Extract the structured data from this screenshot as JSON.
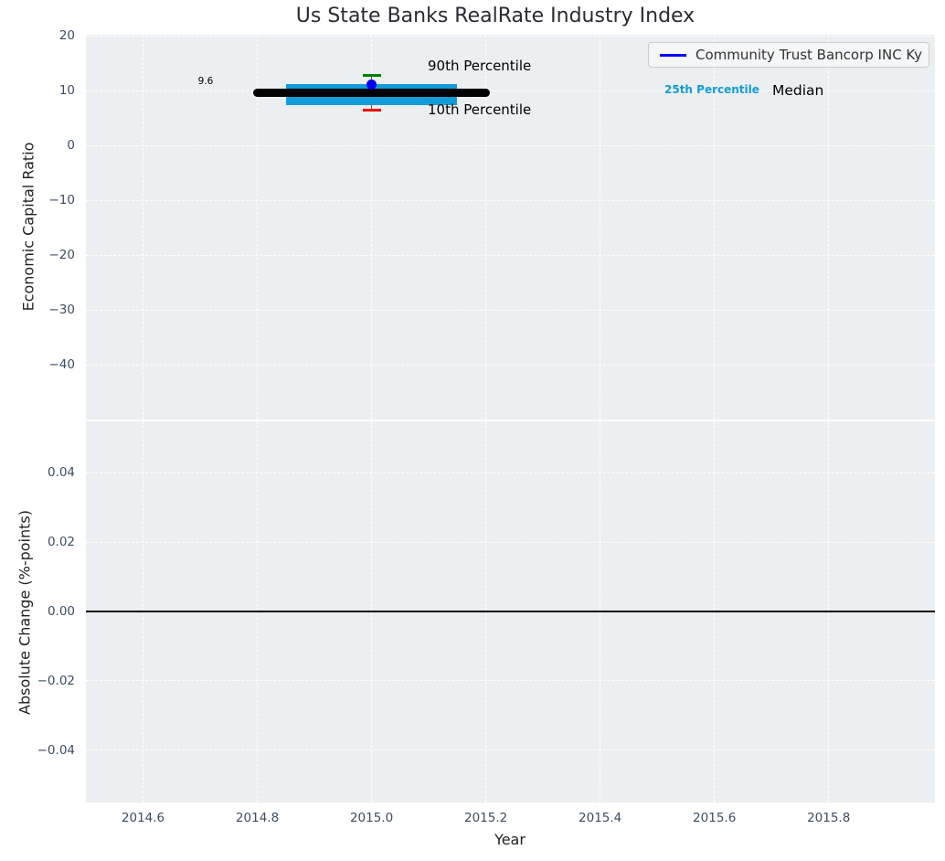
{
  "colors": {
    "plot_background": "#eceff1",
    "gridline": "#ffffff",
    "tick_label": "#3d4d61",
    "iqr_bar": "#149cd8",
    "median_line": "#000000",
    "company_marker": "#0000f0",
    "p90_tick": "#008000",
    "p10_tick": "#f40000",
    "connector": "#555555",
    "zero_line": "#000000"
  },
  "chart_data": [
    {
      "type": "box-percentile",
      "title": "Us State Banks RealRate Industry Index",
      "ylabel": "Economic Capital Ratio",
      "xlim": [
        2014.5,
        2015.986
      ],
      "ylim": [
        -50.0,
        20.2
      ],
      "ytick_values": [
        20,
        10,
        0,
        -10,
        -20,
        -30,
        -40
      ],
      "ytick_labels": [
        "20",
        "10",
        "0",
        "−10",
        "−20",
        "−30",
        "−40"
      ],
      "grid": true,
      "legend": {
        "label": "Community Trust Bancorp INC Ky",
        "position": "upper right"
      },
      "x_center": 2015.0,
      "median": {
        "value": 9.6,
        "label": "9.6",
        "x_start": 2014.8,
        "x_end": 2015.2
      },
      "iqr": {
        "p25": 7.4,
        "p75": 11.2,
        "x_start": 2014.85,
        "x_end": 2015.15
      },
      "p90": {
        "value": 12.7,
        "label": "90th Percentile"
      },
      "p10": {
        "value": 6.4,
        "label": "10th Percentile"
      },
      "p25_text": "25th Percentile",
      "median_text": "Median",
      "company": {
        "name": "Community Trust Bancorp INC Ky",
        "x": 2015.0,
        "value": 11.1
      }
    },
    {
      "type": "line",
      "ylabel": "Absolute Change (%-points)",
      "xlabel": "Year",
      "xlim": [
        2014.5,
        2015.986
      ],
      "ylim": [
        -0.0551,
        0.0549
      ],
      "ytick_values": [
        0.04,
        0.02,
        0,
        -0.02,
        -0.04
      ],
      "ytick_labels": [
        "0.04",
        "0.02",
        "0.00",
        "−0.02",
        "−0.04"
      ],
      "xtick_values": [
        2014.6,
        2014.8,
        2015.0,
        2015.2,
        2015.4,
        2015.6,
        2015.8
      ],
      "xtick_labels": [
        "2014.6",
        "2014.8",
        "2015.0",
        "2015.2",
        "2015.4",
        "2015.6",
        "2015.8"
      ],
      "zero_line": 0,
      "series": [],
      "grid": true
    }
  ]
}
